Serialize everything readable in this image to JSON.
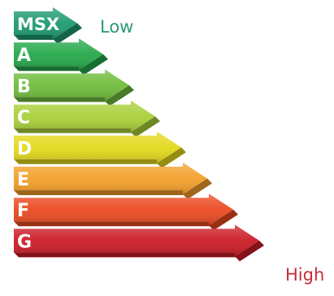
{
  "bars": [
    {
      "label": "MSX",
      "color": "#1e9a72"
    },
    {
      "label": "A",
      "color": "#25a84a"
    },
    {
      "label": "B",
      "color": "#6fbc3c"
    },
    {
      "label": "C",
      "color": "#a9d039"
    },
    {
      "label": "D",
      "color": "#e3d91c"
    },
    {
      "label": "E",
      "color": "#f39f2a"
    },
    {
      "label": "F",
      "color": "#ea4a21"
    },
    {
      "label": "G",
      "color": "#cc1c27"
    }
  ],
  "low_label": "Low",
  "high_label": "High",
  "low_color": "#2a9a78",
  "high_color": "#c82a3a"
}
